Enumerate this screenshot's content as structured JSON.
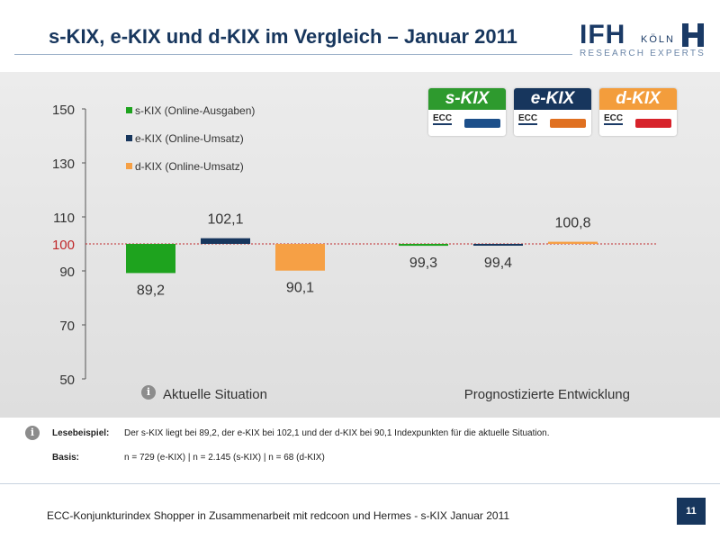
{
  "title": "s-KIX, e-KIX und d-KIX im Vergleich – Januar 2011",
  "logo": {
    "text": "IFH",
    "city": "KÖLN",
    "tagline": "RESEARCH EXPERTS"
  },
  "badges": [
    {
      "name": "s-KIX",
      "color": "#2e9a2e",
      "ecc": "ECC",
      "partner_color": "#1c4f8a"
    },
    {
      "name": "e-KIX",
      "color": "#17365d",
      "ecc": "ECC",
      "partner_color": "#e07020"
    },
    {
      "name": "d-KIX",
      "color": "#f39d3c",
      "ecc": "ECC",
      "partner_color": "#d7232b"
    }
  ],
  "colors": {
    "s_kix": "#1ea31e",
    "e_kix": "#17365d",
    "d_kix": "#f6a045",
    "reference_line": "#c0282a"
  },
  "chart_data": {
    "type": "bar",
    "categories": [
      "Aktuelle Situation",
      "Prognostizierte Entwicklung"
    ],
    "series": [
      {
        "name": "s-KIX (Online-Ausgaben)",
        "values": [
          89.2,
          99.3
        ],
        "labels": [
          "89,2",
          "99,3"
        ]
      },
      {
        "name": "e-KIX (Online-Umsatz)",
        "values": [
          102.1,
          99.4
        ],
        "labels": [
          "102,1",
          "99,4"
        ]
      },
      {
        "name": "d-KIX (Online-Umsatz)",
        "values": [
          90.1,
          100.8
        ],
        "labels": [
          "90,1",
          "100,8"
        ]
      }
    ],
    "baseline": 100,
    "baseline_label": "100",
    "ylim": [
      50,
      150
    ],
    "yticks": [
      150,
      130,
      110,
      90,
      70,
      50
    ],
    "grid": false,
    "legend_position": "top-left"
  },
  "notes": {
    "reading_label": "Lesebeispiel:",
    "reading_text": "Der s-KIX liegt bei 89,2,  der e-KIX bei 102,1 und der d-KIX bei 90,1 Indexpunkten für die aktuelle Situation.",
    "basis_label": "Basis:",
    "basis_text": "n = 729 (e-KIX)   | n = 2.145 (s-KIX)  | n = 68 (d-KIX)"
  },
  "footer": {
    "text": "ECC-Konjunkturindex Shopper in Zusammenarbeit mit redcoon und Hermes  - s-KIX Januar 2011",
    "page": "11"
  }
}
